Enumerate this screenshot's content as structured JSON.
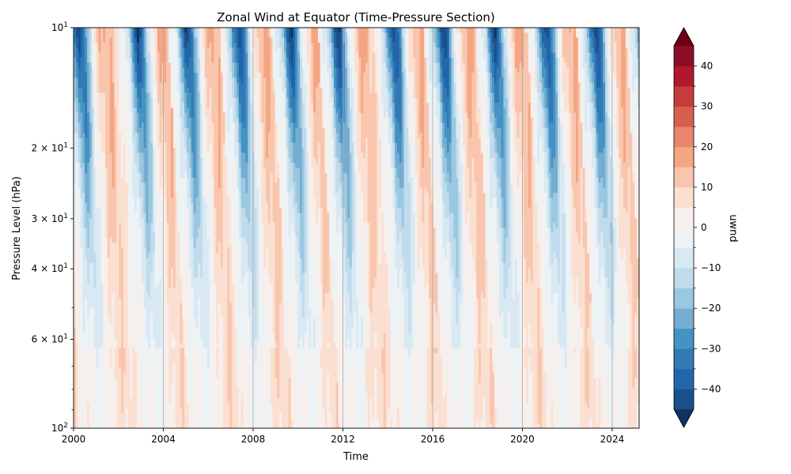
{
  "chart_data": {
    "type": "heatmap",
    "title": "Zonal Wind at Equator (Time-Pressure Section)",
    "xlabel": "Time",
    "ylabel": "Pressure Level (hPa)",
    "x_range": [
      2000,
      2025.2
    ],
    "x_ticks": [
      2000,
      2004,
      2008,
      2012,
      2016,
      2020,
      2024
    ],
    "x_tick_labels": [
      "2000",
      "2004",
      "2008",
      "2012",
      "2016",
      "2020",
      "2024"
    ],
    "y_scale": "log",
    "y_inverted": true,
    "y_range": [
      10,
      100
    ],
    "y_ticks": [
      {
        "value": 10,
        "mantissa": "",
        "base": "10",
        "exponent": "1"
      },
      {
        "value": 20,
        "mantissa": "2 × ",
        "base": "10",
        "exponent": "1"
      },
      {
        "value": 30,
        "mantissa": "3 × ",
        "base": "10",
        "exponent": "1"
      },
      {
        "value": 40,
        "mantissa": "4 × ",
        "base": "10",
        "exponent": "1"
      },
      {
        "value": 60,
        "mantissa": "6 × ",
        "base": "10",
        "exponent": "1"
      },
      {
        "value": 100,
        "mantissa": "",
        "base": "10",
        "exponent": "2"
      }
    ],
    "y_minor_ticks": [
      50,
      70,
      80,
      90
    ],
    "qbo_period_years": 2.33,
    "easterly_phase_onsets_at_10hPa": [
      1999.8,
      2002.4,
      2004.6,
      2006.9,
      2009.2,
      2011.3,
      2013.8,
      2016.0,
      2018.3,
      2020.6,
      2022.8,
      2025.0
    ],
    "year_boundary_lines": [
      2004,
      2008,
      2012,
      2016,
      2020,
      2024
    ],
    "colorbar": {
      "label": "uwnd",
      "colormap": "RdBu_r",
      "min": -45,
      "max": 45,
      "level_step": 5,
      "extend": "both",
      "tick_values": [
        -40,
        -30,
        -20,
        -10,
        0,
        10,
        20,
        30,
        40
      ],
      "tick_labels": [
        "−40",
        "−30",
        "−20",
        "−10",
        "0",
        "10",
        "20",
        "30",
        "40"
      ],
      "colors": [
        "#1b4f8a",
        "#2166ac",
        "#3379b6",
        "#4393c3",
        "#74add1",
        "#9ac8e0",
        "#c0dbec",
        "#d9e9f3",
        "#edf2f5",
        "#f7efec",
        "#fbe0d2",
        "#f9c6ad",
        "#f4a582",
        "#e7866a",
        "#d6604d",
        "#c43c3c",
        "#b2182b",
        "#8c0d25"
      ],
      "under_color": "#0d3263",
      "over_color": "#6b0016"
    }
  }
}
